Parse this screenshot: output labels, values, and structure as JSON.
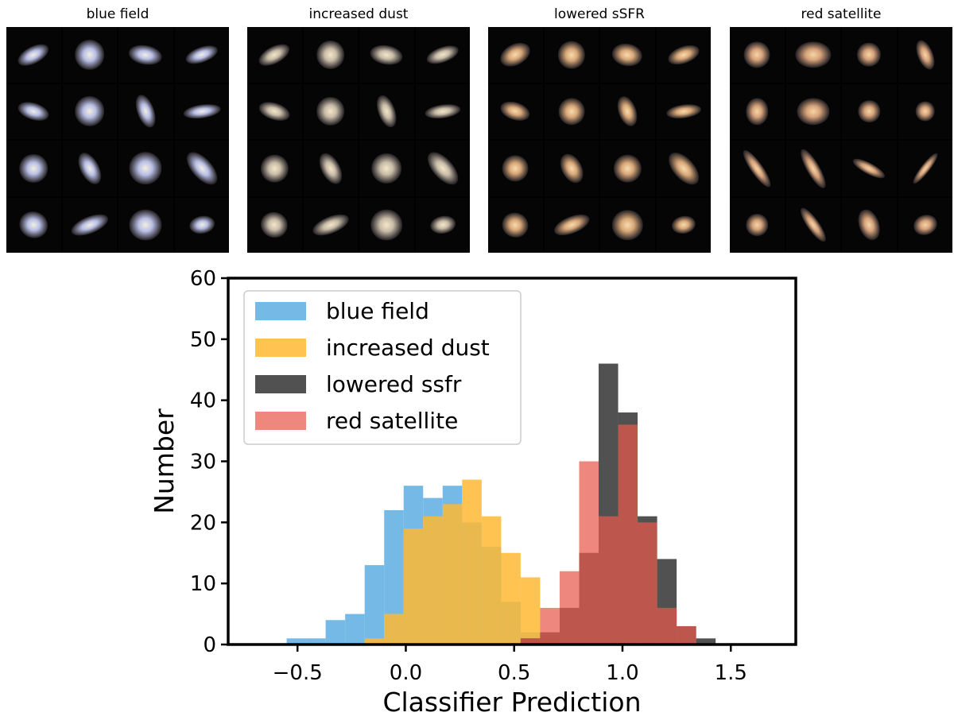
{
  "panels": [
    {
      "title": "blue field",
      "color": "#b9bfe6",
      "core": "#f2efe0",
      "shapes": [
        {
          "w": 0.62,
          "h": 0.3,
          "r": -28
        },
        {
          "w": 0.55,
          "h": 0.55,
          "r": 0
        },
        {
          "w": 0.62,
          "h": 0.34,
          "r": 10
        },
        {
          "w": 0.62,
          "h": 0.28,
          "r": -20
        },
        {
          "w": 0.58,
          "h": 0.3,
          "r": 18
        },
        {
          "w": 0.55,
          "h": 0.55,
          "r": 0
        },
        {
          "w": 0.3,
          "h": 0.62,
          "r": -20
        },
        {
          "w": 0.68,
          "h": 0.24,
          "r": -8
        },
        {
          "w": 0.52,
          "h": 0.52,
          "r": 0
        },
        {
          "w": 0.34,
          "h": 0.62,
          "r": -28
        },
        {
          "w": 0.6,
          "h": 0.6,
          "r": 0
        },
        {
          "w": 0.36,
          "h": 0.72,
          "r": -42
        },
        {
          "w": 0.52,
          "h": 0.48,
          "r": 20
        },
        {
          "w": 0.72,
          "h": 0.3,
          "r": -22
        },
        {
          "w": 0.6,
          "h": 0.56,
          "r": 0
        },
        {
          "w": 0.46,
          "h": 0.32,
          "r": -10
        }
      ]
    },
    {
      "title": "increased dust",
      "color": "#c8bca8",
      "core": "#f4e6c8",
      "shapes": [
        {
          "w": 0.62,
          "h": 0.3,
          "r": -28
        },
        {
          "w": 0.52,
          "h": 0.52,
          "r": 0
        },
        {
          "w": 0.6,
          "h": 0.34,
          "r": 10
        },
        {
          "w": 0.62,
          "h": 0.28,
          "r": -20
        },
        {
          "w": 0.58,
          "h": 0.3,
          "r": 18
        },
        {
          "w": 0.52,
          "h": 0.52,
          "r": 0
        },
        {
          "w": 0.3,
          "h": 0.6,
          "r": -20
        },
        {
          "w": 0.66,
          "h": 0.24,
          "r": -8
        },
        {
          "w": 0.5,
          "h": 0.5,
          "r": 0
        },
        {
          "w": 0.34,
          "h": 0.6,
          "r": -28
        },
        {
          "w": 0.55,
          "h": 0.55,
          "r": 0
        },
        {
          "w": 0.36,
          "h": 0.72,
          "r": -42
        },
        {
          "w": 0.5,
          "h": 0.46,
          "r": 20
        },
        {
          "w": 0.7,
          "h": 0.3,
          "r": -22
        },
        {
          "w": 0.58,
          "h": 0.56,
          "r": 0
        },
        {
          "w": 0.46,
          "h": 0.32,
          "r": -10
        }
      ]
    },
    {
      "title": "lowered sSFR",
      "color": "#d9a878",
      "core": "#f7dcb0",
      "shapes": [
        {
          "w": 0.58,
          "h": 0.38,
          "r": -28
        },
        {
          "w": 0.5,
          "h": 0.5,
          "r": 0
        },
        {
          "w": 0.56,
          "h": 0.4,
          "r": 10
        },
        {
          "w": 0.6,
          "h": 0.3,
          "r": -20
        },
        {
          "w": 0.56,
          "h": 0.32,
          "r": 18
        },
        {
          "w": 0.48,
          "h": 0.48,
          "r": 0
        },
        {
          "w": 0.32,
          "h": 0.56,
          "r": -20
        },
        {
          "w": 0.64,
          "h": 0.24,
          "r": -8
        },
        {
          "w": 0.48,
          "h": 0.48,
          "r": 0
        },
        {
          "w": 0.36,
          "h": 0.56,
          "r": -28
        },
        {
          "w": 0.5,
          "h": 0.5,
          "r": 0
        },
        {
          "w": 0.38,
          "h": 0.7,
          "r": -42
        },
        {
          "w": 0.48,
          "h": 0.44,
          "r": 20
        },
        {
          "w": 0.68,
          "h": 0.3,
          "r": -22
        },
        {
          "w": 0.56,
          "h": 0.54,
          "r": 0
        },
        {
          "w": 0.44,
          "h": 0.32,
          "r": -10
        }
      ]
    },
    {
      "title": "red satellite",
      "color": "#d6a27a",
      "core": "#f5d6a8",
      "shapes": [
        {
          "w": 0.48,
          "h": 0.48,
          "r": 0
        },
        {
          "w": 0.66,
          "h": 0.48,
          "r": 0
        },
        {
          "w": 0.44,
          "h": 0.44,
          "r": 0
        },
        {
          "w": 0.28,
          "h": 0.56,
          "r": -22
        },
        {
          "w": 0.4,
          "h": 0.48,
          "r": 0
        },
        {
          "w": 0.6,
          "h": 0.48,
          "r": 0
        },
        {
          "w": 0.4,
          "h": 0.4,
          "r": 0
        },
        {
          "w": 0.36,
          "h": 0.36,
          "r": 0
        },
        {
          "w": 0.22,
          "h": 0.8,
          "r": -35
        },
        {
          "w": 0.24,
          "h": 0.8,
          "r": -30
        },
        {
          "w": 0.66,
          "h": 0.2,
          "r": 28
        },
        {
          "w": 0.7,
          "h": 0.16,
          "r": -52
        },
        {
          "w": 0.4,
          "h": 0.4,
          "r": 0
        },
        {
          "w": 0.22,
          "h": 0.74,
          "r": -35
        },
        {
          "w": 0.36,
          "h": 0.58,
          "r": -20
        },
        {
          "w": 0.44,
          "h": 0.36,
          "r": -20
        }
      ]
    }
  ],
  "chart_data": {
    "type": "bar",
    "xlabel": "Classifier Prediction",
    "ylabel": "Number",
    "xlim": [
      -0.82,
      1.8
    ],
    "ylim": [
      0,
      60
    ],
    "xticks": [
      -0.5,
      0.0,
      0.5,
      1.0,
      1.5
    ],
    "xtick_labels": [
      "−0.5",
      "0.0",
      "0.5",
      "1.0",
      "1.5"
    ],
    "yticks": [
      0,
      10,
      20,
      30,
      40,
      50,
      60
    ],
    "ytick_labels": [
      "0",
      "10",
      "20",
      "30",
      "40",
      "50",
      "60"
    ],
    "legend_position": "top-left",
    "grid": false,
    "bin_edges": [
      -0.55,
      -0.46,
      -0.37,
      -0.28,
      -0.19,
      -0.1,
      -0.01,
      0.08,
      0.17,
      0.26,
      0.35,
      0.44,
      0.53,
      0.62,
      0.71,
      0.8,
      0.89,
      0.98,
      1.07,
      1.16,
      1.25,
      1.34,
      1.43
    ],
    "series": [
      {
        "name": "blue field",
        "color": "#5dade2",
        "opacity": 0.85,
        "values": [
          1,
          1,
          4,
          5,
          13,
          22,
          26,
          24,
          26,
          20,
          16,
          7,
          2,
          0,
          0,
          0,
          0,
          0,
          0,
          0,
          0,
          0
        ]
      },
      {
        "name": "increased dust",
        "color": "#ffb833",
        "opacity": 0.85,
        "values": [
          0,
          0,
          0,
          0,
          1,
          5,
          19,
          21,
          23,
          27,
          21,
          15,
          11,
          1,
          0,
          0,
          0,
          0,
          0,
          0,
          0,
          0
        ]
      },
      {
        "name": "lowered ssfr",
        "color": "#333333",
        "opacity": 0.85,
        "values": [
          0,
          0,
          0,
          0,
          0,
          0,
          0,
          0,
          0,
          0,
          0,
          0,
          1,
          2,
          6,
          15,
          46,
          38,
          21,
          14,
          3,
          1
        ]
      },
      {
        "name": "red satellite",
        "color": "#e8594c",
        "opacity": 0.72,
        "values": [
          0,
          0,
          0,
          0,
          0,
          0,
          0,
          0,
          0,
          0,
          0,
          0,
          1,
          6,
          12,
          30,
          21,
          36,
          20,
          6,
          3,
          0
        ]
      }
    ]
  }
}
